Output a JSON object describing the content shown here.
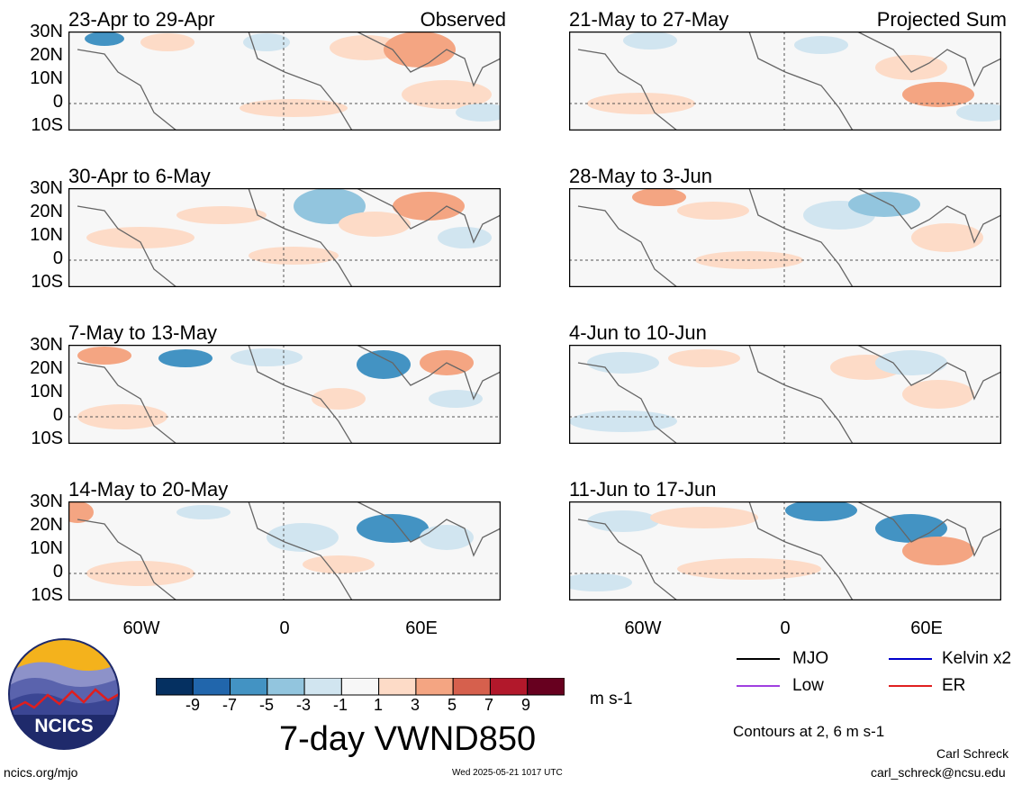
{
  "panels": [
    {
      "title": "23-Apr to 29-Apr",
      "tag": "Observed"
    },
    {
      "title": "30-Apr to 6-May",
      "tag": ""
    },
    {
      "title": "7-May to 13-May",
      "tag": ""
    },
    {
      "title": "14-May to 20-May",
      "tag": ""
    },
    {
      "title": "21-May to 27-May",
      "tag": "Projected Sum"
    },
    {
      "title": "28-May to 3-Jun",
      "tag": ""
    },
    {
      "title": "4-Jun to 10-Jun",
      "tag": ""
    },
    {
      "title": "11-Jun to 17-Jun",
      "tag": ""
    }
  ],
  "lat_labels": [
    "30N",
    "20N",
    "10N",
    "0",
    "10S"
  ],
  "lon_labels": [
    "60W",
    "0",
    "60E"
  ],
  "colorbar": {
    "colors": [
      "#053061",
      "#2166ac",
      "#4393c3",
      "#92c5de",
      "#d1e5f0",
      "#f7f7f7",
      "#fddbc7",
      "#f4a582",
      "#d6604d",
      "#b2182b",
      "#67001f"
    ],
    "labels": [
      "-9",
      "-7",
      "-5",
      "-3",
      "-1",
      "1",
      "3",
      "5",
      "7",
      "9"
    ],
    "units": "m s-1"
  },
  "main_title": "7-day VWND850",
  "legend": {
    "items": [
      {
        "label": "MJO",
        "color": "#000000"
      },
      {
        "label": "Kelvin x2",
        "color": "#0000cc"
      },
      {
        "label": "Low",
        "color": "#a040e0"
      },
      {
        "label": "ER",
        "color": "#e02020"
      }
    ],
    "contours_note": "Contours at 2, 6 m s-1"
  },
  "logo_text": "NCICS",
  "footer": {
    "url": "ncics.org/mjo",
    "timestamp": "Wed 2025-05-21 1017 UTC",
    "author": "Carl Schreck",
    "email": "carl_schreck@ncsu.edu"
  }
}
